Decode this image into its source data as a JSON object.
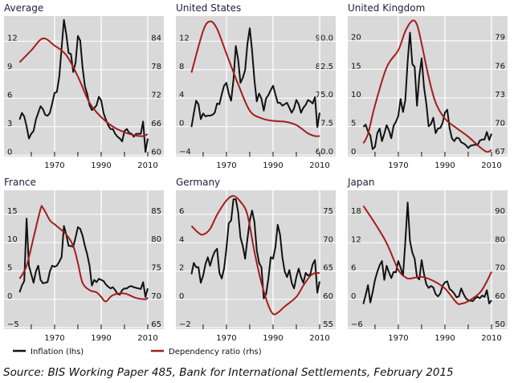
{
  "colors": {
    "inflation": "#111111",
    "dependency": "#a51d1d",
    "plot_bg": "#d9d9d9",
    "grid": "#ffffff"
  },
  "legend": {
    "inflation_label": "Inflation (lhs)",
    "dependency_label": "Dependency ratio (rhs)"
  },
  "source": "Source: BIS Working Paper 485, Bank for International Settlements, February 2015",
  "chart_data": [
    {
      "type": "line",
      "title": "Average",
      "xlim": [
        1948.3,
        2016.9
      ],
      "xticks": [
        1970,
        1990,
        2010
      ],
      "lhs": {
        "ylim": [
          -0.4,
          14.4
        ],
        "ticks": [
          "0",
          "3",
          "6",
          "9",
          "12"
        ]
      },
      "rhs": {
        "ylim": [
          59.2,
          88.7
        ],
        "ticks": [
          "60",
          "66",
          "72",
          "78",
          "84"
        ]
      },
      "series": [
        {
          "name": "Inflation (lhs)",
          "axis": "lhs",
          "start": 1955,
          "values": [
            3.5,
            4.2,
            3.8,
            2.8,
            1.5,
            2.0,
            2.3,
            3.5,
            4.2,
            4.9,
            4.6,
            4.0,
            3.9,
            4.2,
            5.2,
            6.3,
            6.4,
            8.0,
            11.0,
            14.0,
            12.5,
            10.5,
            10.4,
            8.5,
            9.5,
            12.3,
            11.8,
            9.0,
            7.0,
            6.2,
            5.0,
            4.5,
            4.7,
            5.0,
            5.9,
            5.5,
            4.2,
            3.5,
            2.9,
            2.5,
            2.5,
            2.0,
            1.7,
            1.5,
            1.2,
            2.3,
            2.5,
            2.1,
            2.0,
            1.7,
            2.0,
            2.0,
            2.0,
            3.3,
            0.1,
            1.5
          ]
        },
        {
          "name": "Dependency ratio (rhs)",
          "axis": "rhs",
          "points": [
            [
              1955,
              79
            ],
            [
              1960,
              81.5
            ],
            [
              1965,
              84
            ],
            [
              1970,
              82.5
            ],
            [
              1975,
              80.5
            ],
            [
              1980,
              76
            ],
            [
              1985,
              70.5
            ],
            [
              1990,
              67.5
            ],
            [
              1995,
              65.5
            ],
            [
              2000,
              64.3
            ],
            [
              2005,
              63.6
            ],
            [
              2008,
              63.5
            ],
            [
              2010,
              63.9
            ]
          ]
        }
      ]
    },
    {
      "type": "line",
      "title": "United States",
      "xlim": [
        1948.3,
        2016.9
      ],
      "xticks": [
        1970,
        1990,
        2010
      ],
      "lhs": {
        "ylim": [
          -4.56,
          15.2
        ],
        "ticks": [
          "−4",
          "0",
          "4",
          "8",
          "12"
        ]
      },
      "rhs": {
        "ylim": [
          58.9,
          95.9
        ],
        "ticks": [
          "60.0",
          "67.5",
          "75.0",
          "82.5",
          "90.0"
        ]
      },
      "series": [
        {
          "name": "Inflation (lhs)",
          "axis": "lhs",
          "start": 1955,
          "values": [
            -0.4,
            1.5,
            3.3,
            2.8,
            0.7,
            1.5,
            1.1,
            1.2,
            1.2,
            1.3,
            1.6,
            2.9,
            2.8,
            4.2,
            5.4,
            5.8,
            4.3,
            3.3,
            6.2,
            11.0,
            9.1,
            5.8,
            6.5,
            7.6,
            11.3,
            13.5,
            10.3,
            6.2,
            3.2,
            4.3,
            3.6,
            1.9,
            3.6,
            4.1,
            4.8,
            5.4,
            4.2,
            3.0,
            3.0,
            2.6,
            2.8,
            3.0,
            2.3,
            1.6,
            2.2,
            3.4,
            2.8,
            1.6,
            2.3,
            2.7,
            3.4,
            3.2,
            2.9,
            3.8,
            -0.4,
            1.6
          ]
        },
        {
          "name": "Dependency ratio (rhs)",
          "axis": "rhs",
          "points": [
            [
              1955,
              81
            ],
            [
              1960,
              92
            ],
            [
              1963,
              94.5
            ],
            [
              1966,
              92.5
            ],
            [
              1970,
              86
            ],
            [
              1975,
              78
            ],
            [
              1980,
              71
            ],
            [
              1985,
              69
            ],
            [
              1990,
              68.3
            ],
            [
              1995,
              68.1
            ],
            [
              2000,
              67.2
            ],
            [
              2005,
              65
            ],
            [
              2008,
              64.3
            ],
            [
              2010,
              64.3
            ]
          ]
        }
      ]
    },
    {
      "type": "line",
      "title": "United Kingdom",
      "xlim": [
        1948.3,
        2016.9
      ],
      "xticks": [
        1970,
        1990,
        2010
      ],
      "lhs": {
        "ylim": [
          -0.7,
          23.9
        ],
        "ticks": [
          "0",
          "5",
          "10",
          "15",
          "20"
        ]
      },
      "rhs": {
        "ylim": [
          66.6,
          81.4
        ],
        "ticks": [
          "67",
          "70",
          "73",
          "76",
          "79"
        ]
      },
      "series": [
        {
          "name": "Inflation (lhs)",
          "axis": "lhs",
          "start": 1955,
          "values": [
            4.5,
            4.9,
            3.7,
            3.0,
            0.6,
            1.0,
            3.4,
            4.2,
            2.0,
            3.3,
            4.8,
            3.9,
            2.5,
            4.7,
            5.4,
            6.4,
            9.4,
            7.1,
            9.2,
            16.0,
            21.0,
            15.5,
            15.0,
            8.2,
            13.4,
            16.5,
            11.5,
            8.6,
            4.6,
            5.0,
            6.1,
            3.4,
            4.2,
            4.3,
            5.2,
            7.0,
            7.5,
            4.3,
            2.5,
            2.0,
            2.6,
            2.5,
            1.8,
            1.6,
            1.3,
            0.8,
            1.2,
            1.3,
            1.4,
            1.3,
            2.1,
            2.3,
            2.3,
            3.6,
            2.2,
            3.3
          ]
        },
        {
          "name": "Dependency ratio (rhs)",
          "axis": "rhs",
          "points": [
            [
              1955,
              68.0
            ],
            [
              1957,
              69.0
            ],
            [
              1960,
              72.0
            ],
            [
              1965,
              76.0
            ],
            [
              1970,
              77.8
            ],
            [
              1973,
              79.8
            ],
            [
              1976,
              80.9
            ],
            [
              1978,
              80.5
            ],
            [
              1980,
              78.5
            ],
            [
              1983,
              75
            ],
            [
              1986,
              72.3
            ],
            [
              1990,
              70.6
            ],
            [
              1995,
              69.6
            ],
            [
              2000,
              68.7
            ],
            [
              2005,
              67.6
            ],
            [
              2008,
              67.1
            ],
            [
              2010,
              67.3
            ]
          ]
        }
      ]
    },
    {
      "type": "line",
      "title": "France",
      "xlim": [
        1948.3,
        2016.9
      ],
      "xticks": [
        1970,
        1990,
        2010
      ],
      "lhs": {
        "ylim": [
          -5.7,
          18.8
        ],
        "ticks": [
          "−5",
          "0",
          "5",
          "10",
          "15"
        ]
      },
      "rhs": {
        "ylim": [
          64.3,
          88.8
        ],
        "ticks": [
          "65",
          "70",
          "75",
          "80",
          "85"
        ]
      },
      "series": [
        {
          "name": "Inflation (lhs)",
          "axis": "lhs",
          "start": 1955,
          "values": [
            0.8,
            2.0,
            2.8,
            13.8,
            5.5,
            4.0,
            2.5,
            4.5,
            5.5,
            3.0,
            2.4,
            2.5,
            2.6,
            4.5,
            5.5,
            5.3,
            5.5,
            6.2,
            7.0,
            12.5,
            11.0,
            9.0,
            9.0,
            8.8,
            10.5,
            12.3,
            12.0,
            10.8,
            9.0,
            7.5,
            5.5,
            2.0,
            3.0,
            2.6,
            3.2,
            3.0,
            2.8,
            2.2,
            1.8,
            1.5,
            1.7,
            1.2,
            0.5,
            0.4,
            1.2,
            1.5,
            1.5,
            1.8,
            1.9,
            1.7,
            1.6,
            1.5,
            1.4,
            2.6,
            0.0,
            1.5
          ]
        },
        {
          "name": "Dependency ratio (rhs)",
          "axis": "rhs",
          "points": [
            [
              1955,
              73.2
            ],
            [
              1958,
              75.5
            ],
            [
              1961,
              80.5
            ],
            [
              1964,
              85.5
            ],
            [
              1965,
              85.7
            ],
            [
              1968,
              83.5
            ],
            [
              1970,
              82.8
            ],
            [
              1975,
              81
            ],
            [
              1978,
              79
            ],
            [
              1980,
              76
            ],
            [
              1982,
              72.5
            ],
            [
              1985,
              71.2
            ],
            [
              1988,
              70.8
            ],
            [
              1990,
              70.0
            ],
            [
              1992,
              69.2
            ],
            [
              1995,
              70.3
            ],
            [
              2000,
              70.6
            ],
            [
              2005,
              69.8
            ],
            [
              2009,
              69.6
            ],
            [
              2010,
              69.9
            ]
          ]
        }
      ]
    },
    {
      "type": "line",
      "title": "Germany",
      "xlim": [
        1948.3,
        2016.9
      ],
      "xticks": [
        1970,
        1990,
        2010
      ],
      "lhs": {
        "ylim": [
          -2.28,
          7.53
        ],
        "ticks": [
          "−2",
          "0",
          "2",
          "4",
          "6"
        ]
      },
      "rhs": {
        "ylim": [
          54.3,
          78.8
        ],
        "ticks": [
          "55",
          "60",
          "65",
          "70",
          "75"
        ]
      },
      "series": [
        {
          "name": "Inflation (lhs)",
          "axis": "lhs",
          "start": 1955,
          "values": [
            1.6,
            2.4,
            2.1,
            2.1,
            1.0,
            1.5,
            2.3,
            2.8,
            2.2,
            2.8,
            3.2,
            3.4,
            1.7,
            1.3,
            2.0,
            3.4,
            5.2,
            5.4,
            6.9,
            6.9,
            6.0,
            4.2,
            3.6,
            2.7,
            4.1,
            5.4,
            6.1,
            5.3,
            3.3,
            2.4,
            2.1,
            -0.1,
            0.2,
            1.3,
            2.8,
            2.7,
            3.5,
            5.1,
            4.4,
            2.8,
            1.8,
            1.4,
            1.9,
            1.0,
            0.6,
            1.4,
            2.0,
            1.4,
            1.0,
            1.7,
            1.5,
            1.6,
            2.3,
            2.6,
            0.3,
            1.1
          ]
        },
        {
          "name": "Dependency ratio (rhs)",
          "axis": "rhs",
          "points": [
            [
              1955,
              72.5
            ],
            [
              1958,
              71.3
            ],
            [
              1960,
              71.0
            ],
            [
              1963,
              72.0
            ],
            [
              1966,
              74.5
            ],
            [
              1970,
              77.0
            ],
            [
              1973,
              77.8
            ],
            [
              1976,
              76.8
            ],
            [
              1979,
              74.5
            ],
            [
              1982,
              68
            ],
            [
              1985,
              62.5
            ],
            [
              1988,
              58.5
            ],
            [
              1990,
              57.0
            ],
            [
              1992,
              57.2
            ],
            [
              1995,
              58.3
            ],
            [
              2000,
              60.0
            ],
            [
              2003,
              62.0
            ],
            [
              2006,
              63.7
            ],
            [
              2008,
              64.2
            ],
            [
              2010,
              64.2
            ]
          ]
        }
      ]
    },
    {
      "type": "line",
      "title": "Japan",
      "xlim": [
        1948.3,
        2016.9
      ],
      "xticks": [
        1970,
        1990,
        2010
      ],
      "lhs": {
        "ylim": [
          -6.85,
          22.6
        ],
        "ticks": [
          "−6",
          "0",
          "6",
          "12",
          "18"
        ]
      },
      "rhs": {
        "ylim": [
          48.6,
          97.7
        ],
        "ticks": [
          "50",
          "60",
          "70",
          "80",
          "90"
        ]
      },
      "series": [
        {
          "name": "Inflation (lhs)",
          "axis": "lhs",
          "start": 1955,
          "values": [
            -1.5,
            0.4,
            2.5,
            -1.2,
            1.0,
            3.6,
            5.3,
            6.7,
            7.6,
            3.6,
            6.6,
            5.2,
            4.0,
            5.3,
            5.2,
            7.6,
            6.2,
            4.5,
            11.7,
            20.0,
            11.8,
            9.4,
            8.1,
            4.2,
            3.7,
            7.8,
            4.9,
            2.7,
            1.9,
            2.3,
            2.0,
            0.6,
            0.1,
            0.7,
            2.3,
            3.1,
            3.3,
            1.7,
            1.3,
            0.7,
            -0.1,
            0.1,
            1.8,
            0.6,
            -0.3,
            -0.7,
            -0.8,
            -0.9,
            -0.3,
            0.0,
            -0.3,
            0.3,
            0.0,
            1.4,
            -1.4,
            -0.7
          ]
        },
        {
          "name": "Dependency ratio (rhs)",
          "axis": "rhs",
          "points": [
            [
              1955,
              92.2
            ],
            [
              1960,
              86
            ],
            [
              1965,
              79
            ],
            [
              1970,
              69.6
            ],
            [
              1973,
              67
            ],
            [
              1975,
              66.5
            ],
            [
              1980,
              67.1
            ],
            [
              1985,
              65.7
            ],
            [
              1990,
              63
            ],
            [
              1995,
              58.0
            ],
            [
              1997,
              57.6
            ],
            [
              2000,
              58.5
            ],
            [
              2005,
              61.5
            ],
            [
              2008,
              65.5
            ],
            [
              2010,
              68.9
            ]
          ]
        }
      ]
    }
  ]
}
